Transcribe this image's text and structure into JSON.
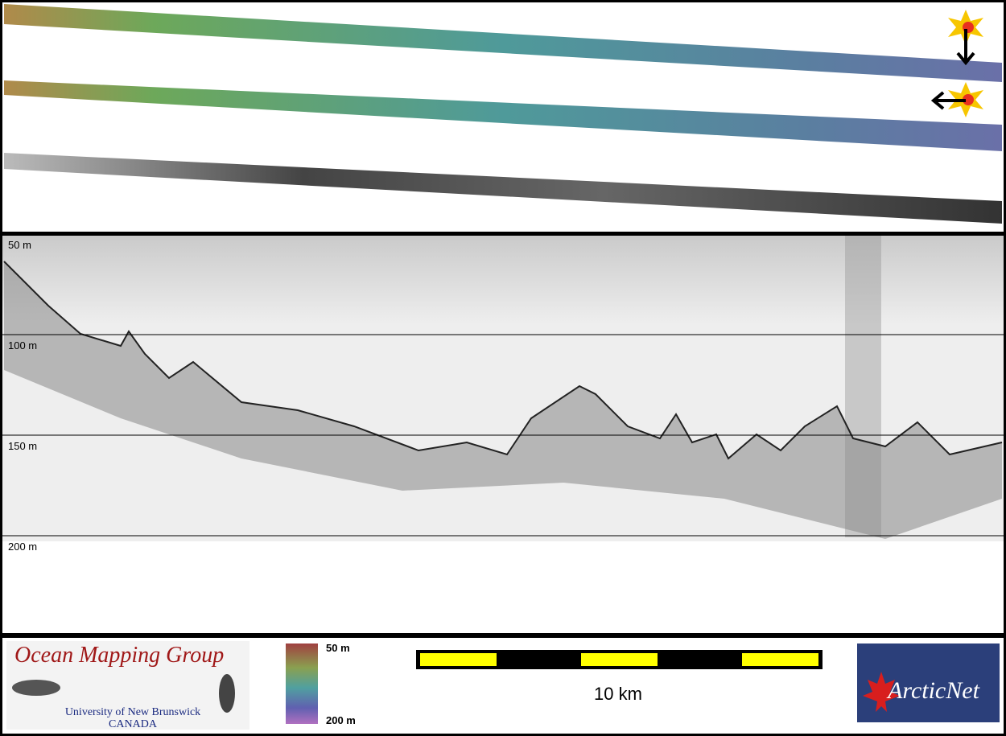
{
  "depth_labels": [
    "50 m",
    "100 m",
    "150 m",
    "200 m"
  ],
  "logo": {
    "title": "Ocean Mapping Group",
    "line1": "University of New Brunswick",
    "line2": "CANADA"
  },
  "colorbar": {
    "top": "50 m",
    "bottom": "200 m"
  },
  "scale_bar": {
    "label": "10 km"
  },
  "partner_logo": {
    "text": "ArcticNet"
  }
}
